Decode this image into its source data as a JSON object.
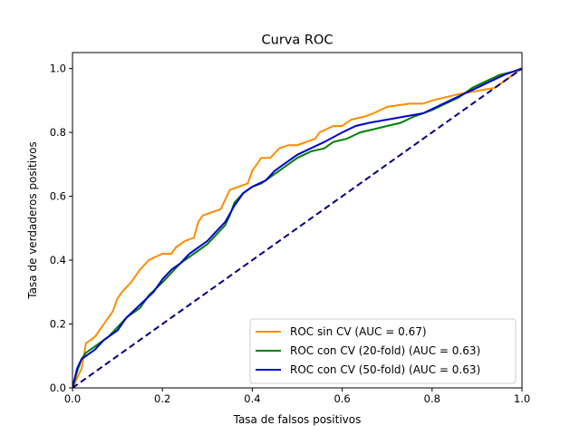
{
  "chart_data": {
    "type": "line",
    "title": "Curva ROC",
    "xlabel": "Tasa de falsos positivos",
    "ylabel": "Tasa de verdaderos positivos",
    "xlim": [
      0.0,
      1.0
    ],
    "ylim": [
      0.0,
      1.05
    ],
    "xticks": [
      "0.0",
      "0.2",
      "0.4",
      "0.6",
      "0.8",
      "1.0"
    ],
    "yticks": [
      "0.0",
      "0.2",
      "0.4",
      "0.6",
      "0.8",
      "1.0"
    ],
    "grid": false,
    "legend_position": "lower-right",
    "series": [
      {
        "name": "ROC sin CV (AUC = 0.67)",
        "color": "#ff8c00",
        "points": [
          [
            0,
            0
          ],
          [
            0.01,
            0.03
          ],
          [
            0.02,
            0.06
          ],
          [
            0.025,
            0.1
          ],
          [
            0.03,
            0.14
          ],
          [
            0.05,
            0.16
          ],
          [
            0.07,
            0.2
          ],
          [
            0.09,
            0.24
          ],
          [
            0.1,
            0.28
          ],
          [
            0.11,
            0.3
          ],
          [
            0.13,
            0.33
          ],
          [
            0.15,
            0.37
          ],
          [
            0.17,
            0.4
          ],
          [
            0.2,
            0.42
          ],
          [
            0.22,
            0.42
          ],
          [
            0.23,
            0.44
          ],
          [
            0.25,
            0.46
          ],
          [
            0.27,
            0.47
          ],
          [
            0.28,
            0.52
          ],
          [
            0.29,
            0.54
          ],
          [
            0.31,
            0.55
          ],
          [
            0.33,
            0.56
          ],
          [
            0.34,
            0.59
          ],
          [
            0.35,
            0.62
          ],
          [
            0.37,
            0.63
          ],
          [
            0.39,
            0.64
          ],
          [
            0.4,
            0.68
          ],
          [
            0.41,
            0.7
          ],
          [
            0.42,
            0.72
          ],
          [
            0.44,
            0.72
          ],
          [
            0.46,
            0.75
          ],
          [
            0.48,
            0.76
          ],
          [
            0.5,
            0.76
          ],
          [
            0.52,
            0.77
          ],
          [
            0.54,
            0.78
          ],
          [
            0.55,
            0.8
          ],
          [
            0.58,
            0.82
          ],
          [
            0.6,
            0.82
          ],
          [
            0.62,
            0.84
          ],
          [
            0.65,
            0.85
          ],
          [
            0.67,
            0.86
          ],
          [
            0.7,
            0.88
          ],
          [
            0.75,
            0.89
          ],
          [
            0.78,
            0.89
          ],
          [
            0.8,
            0.9
          ],
          [
            0.83,
            0.91
          ],
          [
            0.86,
            0.92
          ],
          [
            0.9,
            0.93
          ],
          [
            0.94,
            0.94
          ],
          [
            0.96,
            0.96
          ],
          [
            0.98,
            0.98
          ],
          [
            1.0,
            1.0
          ]
        ]
      },
      {
        "name": "ROC con CV (20-fold) (AUC = 0.63)",
        "color": "#008000",
        "points": [
          [
            0,
            0
          ],
          [
            0.01,
            0.05
          ],
          [
            0.02,
            0.09
          ],
          [
            0.03,
            0.11
          ],
          [
            0.05,
            0.13
          ],
          [
            0.08,
            0.16
          ],
          [
            0.1,
            0.19
          ],
          [
            0.12,
            0.22
          ],
          [
            0.15,
            0.25
          ],
          [
            0.17,
            0.29
          ],
          [
            0.2,
            0.33
          ],
          [
            0.22,
            0.36
          ],
          [
            0.24,
            0.39
          ],
          [
            0.26,
            0.41
          ],
          [
            0.28,
            0.43
          ],
          [
            0.3,
            0.45
          ],
          [
            0.32,
            0.48
          ],
          [
            0.34,
            0.51
          ],
          [
            0.35,
            0.54
          ],
          [
            0.36,
            0.58
          ],
          [
            0.38,
            0.61
          ],
          [
            0.4,
            0.63
          ],
          [
            0.42,
            0.64
          ],
          [
            0.45,
            0.67
          ],
          [
            0.48,
            0.7
          ],
          [
            0.5,
            0.72
          ],
          [
            0.53,
            0.74
          ],
          [
            0.56,
            0.75
          ],
          [
            0.58,
            0.77
          ],
          [
            0.61,
            0.78
          ],
          [
            0.64,
            0.8
          ],
          [
            0.67,
            0.81
          ],
          [
            0.7,
            0.82
          ],
          [
            0.73,
            0.83
          ],
          [
            0.76,
            0.85
          ],
          [
            0.8,
            0.87
          ],
          [
            0.83,
            0.89
          ],
          [
            0.86,
            0.91
          ],
          [
            0.89,
            0.94
          ],
          [
            0.92,
            0.96
          ],
          [
            0.95,
            0.98
          ],
          [
            0.98,
            0.99
          ],
          [
            1.0,
            1.0
          ]
        ]
      },
      {
        "name": "ROC con CV (50-fold) (AUC = 0.63)",
        "color": "#0000cd",
        "points": [
          [
            0,
            0
          ],
          [
            0.01,
            0.06
          ],
          [
            0.02,
            0.09
          ],
          [
            0.03,
            0.1
          ],
          [
            0.05,
            0.12
          ],
          [
            0.07,
            0.15
          ],
          [
            0.1,
            0.18
          ],
          [
            0.12,
            0.22
          ],
          [
            0.15,
            0.26
          ],
          [
            0.18,
            0.3
          ],
          [
            0.2,
            0.34
          ],
          [
            0.22,
            0.37
          ],
          [
            0.24,
            0.39
          ],
          [
            0.26,
            0.42
          ],
          [
            0.28,
            0.44
          ],
          [
            0.3,
            0.46
          ],
          [
            0.32,
            0.49
          ],
          [
            0.34,
            0.52
          ],
          [
            0.36,
            0.57
          ],
          [
            0.38,
            0.61
          ],
          [
            0.4,
            0.63
          ],
          [
            0.43,
            0.65
          ],
          [
            0.45,
            0.68
          ],
          [
            0.47,
            0.7
          ],
          [
            0.5,
            0.73
          ],
          [
            0.53,
            0.75
          ],
          [
            0.56,
            0.77
          ],
          [
            0.6,
            0.8
          ],
          [
            0.63,
            0.82
          ],
          [
            0.66,
            0.83
          ],
          [
            0.7,
            0.84
          ],
          [
            0.74,
            0.85
          ],
          [
            0.78,
            0.86
          ],
          [
            0.81,
            0.88
          ],
          [
            0.84,
            0.9
          ],
          [
            0.87,
            0.92
          ],
          [
            0.9,
            0.94
          ],
          [
            0.93,
            0.96
          ],
          [
            0.96,
            0.98
          ],
          [
            0.98,
            0.99
          ],
          [
            1.0,
            1.0
          ]
        ]
      },
      {
        "name": "",
        "color": "#000080",
        "dashed": true,
        "points": [
          [
            0,
            0
          ],
          [
            1,
            1
          ]
        ]
      }
    ]
  }
}
